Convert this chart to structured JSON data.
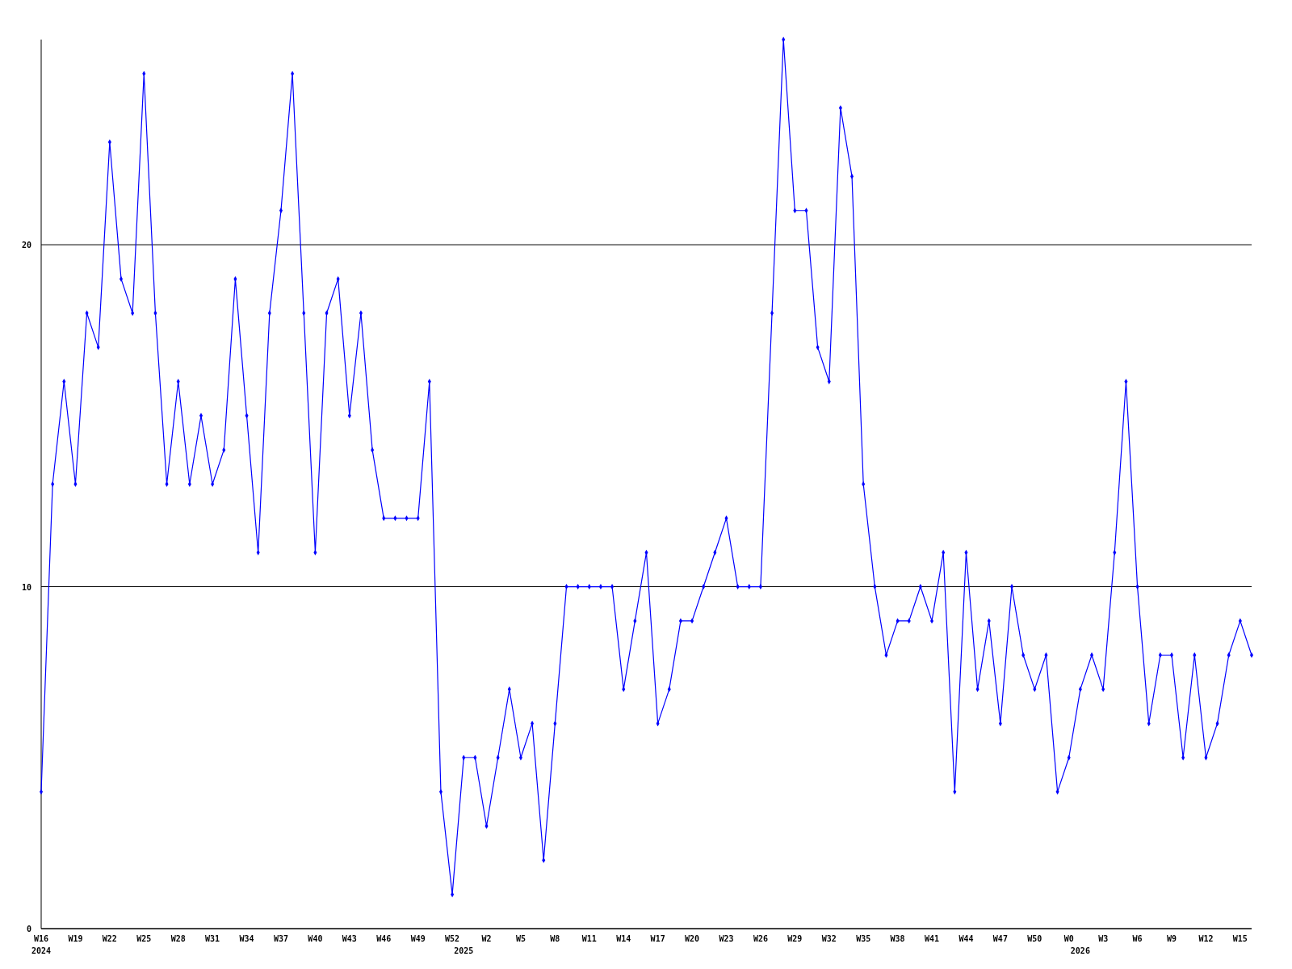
{
  "chart_data": {
    "type": "line",
    "categories": [
      "W16\n2024",
      null,
      null,
      "W19",
      null,
      null,
      "W22",
      null,
      null,
      "W25",
      null,
      null,
      "W28",
      null,
      null,
      "W31",
      null,
      null,
      "W34",
      null,
      null,
      "W37",
      null,
      null,
      "W40",
      null,
      null,
      "W43",
      null,
      null,
      "W46",
      null,
      null,
      "W49",
      null,
      null,
      "W52",
      "\n2025",
      null,
      "W2",
      null,
      null,
      "W5",
      null,
      null,
      "W8",
      null,
      null,
      "W11",
      null,
      null,
      "W14",
      null,
      null,
      "W17",
      null,
      null,
      "W20",
      null,
      null,
      "W23",
      null,
      null,
      "W26",
      null,
      null,
      "W29",
      null,
      null,
      "W32",
      null,
      null,
      "W35",
      null,
      null,
      "W38",
      null,
      null,
      "W41",
      null,
      null,
      "W44",
      null,
      null,
      "W47",
      null,
      null,
      "W50",
      null,
      null,
      "W0",
      "\n2026",
      null,
      "W3",
      null,
      null,
      "W6",
      null,
      null,
      "W9",
      null,
      null,
      "W12",
      null,
      null,
      "W15",
      null
    ],
    "series": [
      {
        "color": "#0000ff",
        "values": [
          4,
          13,
          16,
          13,
          18,
          17,
          23,
          19,
          18,
          25,
          18,
          13,
          16,
          13,
          15,
          13,
          14,
          19,
          15,
          11,
          18,
          21,
          25,
          18,
          11,
          18,
          19,
          15,
          18,
          14,
          12,
          12,
          12,
          12,
          16,
          4,
          1,
          5,
          5,
          3,
          5,
          7,
          5,
          6,
          2,
          6,
          10,
          10,
          10,
          10,
          10,
          7,
          9,
          11,
          6,
          7,
          9,
          9,
          10,
          11,
          12,
          10,
          10,
          10,
          18,
          26,
          21,
          21,
          17,
          16,
          24,
          22,
          13,
          10,
          8,
          9,
          9,
          10,
          9,
          11,
          4,
          11,
          7,
          9,
          6,
          10,
          8,
          7,
          8,
          4,
          5,
          7,
          8,
          7,
          11,
          16,
          10,
          6,
          8,
          8,
          5,
          8,
          5,
          6,
          8,
          9,
          8
        ]
      }
    ],
    "ylim": [
      0,
      26
    ],
    "yticks": [
      0,
      10,
      20
    ],
    "grid": "y",
    "marker": "diamond"
  }
}
